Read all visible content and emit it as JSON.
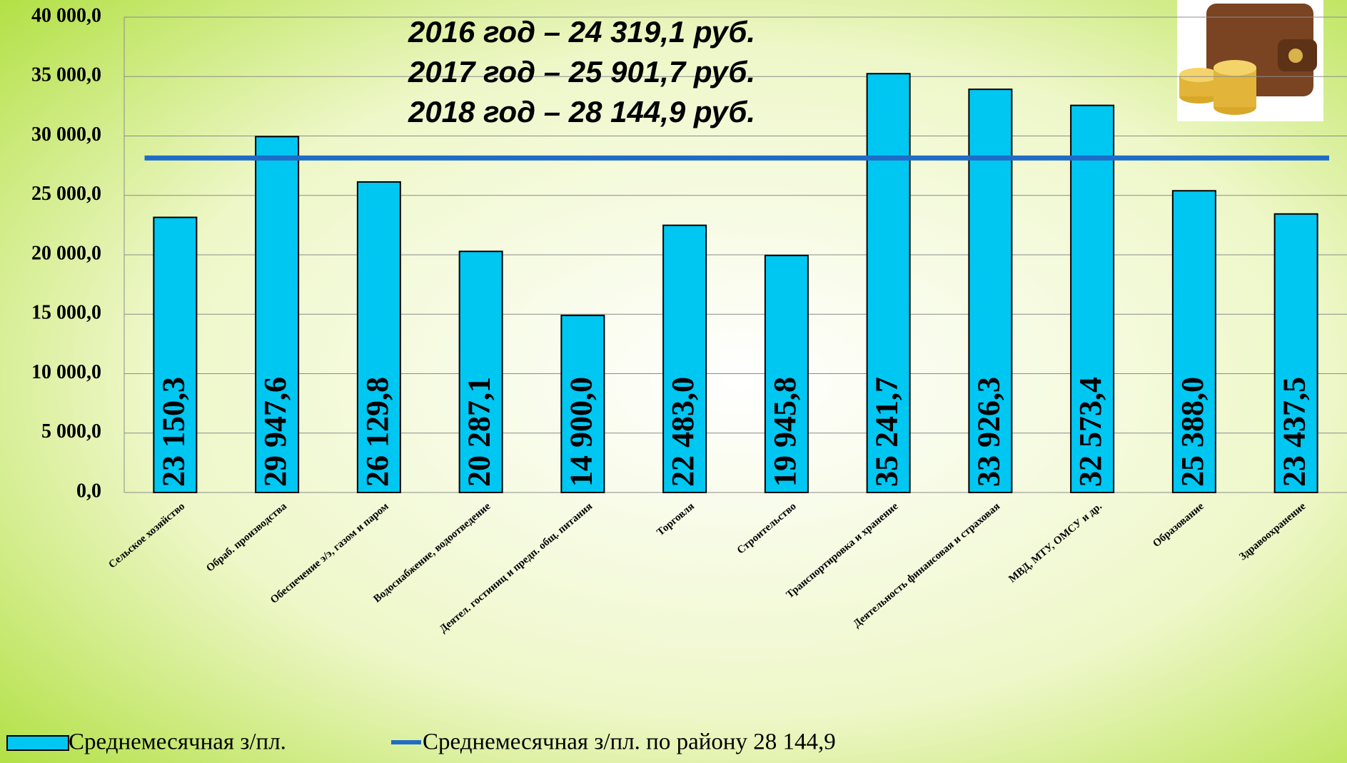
{
  "chart_data": {
    "type": "bar",
    "annotations": [
      "2016 год – 24 319,1 руб.",
      "2017 год – 25 901,7 руб.",
      "2018 год –  28 144,9 руб."
    ],
    "categories": [
      "Сельское хозяйство",
      "Обраб. производства",
      "Обеспечение э/э, газом и паром",
      "Водоснабжение, водоотведение",
      "Деятел. гостиниц и предп. общ. питания",
      "Торговля",
      "Строительство",
      "Транспортировка и хранение",
      "Деятельность финансовая и страховая",
      "МВД, МТУ, ОМСУ и др.",
      "Образование",
      "Здравоохранение"
    ],
    "series": [
      {
        "name": "Среднемесячная з/пл.",
        "color": "#00c6f2",
        "values": [
          23150.3,
          29947.6,
          26129.8,
          20287.1,
          14900.0,
          22483.0,
          19945.8,
          35241.7,
          33926.3,
          32573.4,
          25388.0,
          23437.5
        ],
        "value_labels": [
          "23 150,3",
          "29 947,6",
          "26 129,8",
          "20 287,1",
          "14 900,0",
          "22 483,0",
          "19 945,8",
          "35 241,7",
          "33 926,3",
          "32 573,4",
          "25 388,0",
          "23 437,5"
        ]
      }
    ],
    "reference_line": {
      "name": "Среднемесячная з/пл. по району 28 144,9",
      "color": "#1f6cc8",
      "value": 28144.9
    },
    "ylim": [
      0,
      40000
    ],
    "yticks": [
      {
        "value": 0,
        "label": "0,0"
      },
      {
        "value": 5000,
        "label": "5 000,0"
      },
      {
        "value": 10000,
        "label": "10 000,0"
      },
      {
        "value": 15000,
        "label": "15 000,0"
      },
      {
        "value": 20000,
        "label": "20 000,0"
      },
      {
        "value": 25000,
        "label": "25 000,0"
      },
      {
        "value": 30000,
        "label": "30 000,0"
      },
      {
        "value": 35000,
        "label": "35 000,0"
      },
      {
        "value": 40000,
        "label": "40 000,0"
      }
    ],
    "grid": true
  }
}
